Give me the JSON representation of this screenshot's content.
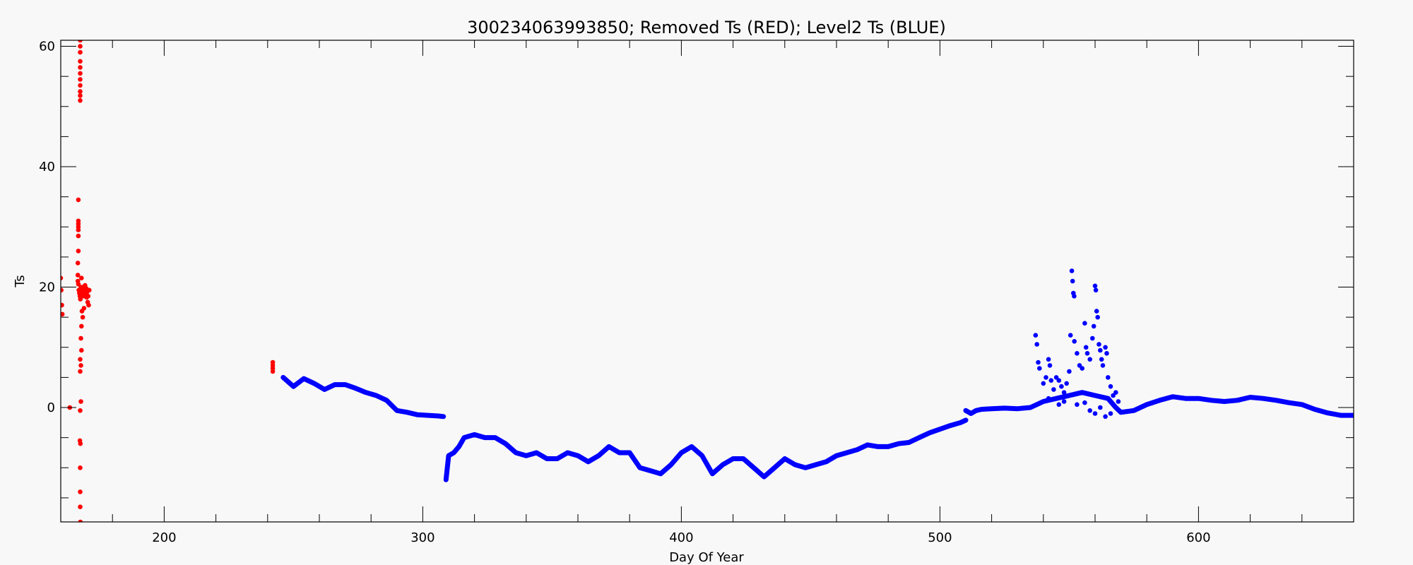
{
  "chart_data": {
    "type": "scatter",
    "title": "300234063993850; Removed Ts (RED); Level2 Ts (BLUE)",
    "xlabel": "Day Of Year",
    "ylabel": "Ts",
    "xlim": [
      160,
      660
    ],
    "ylim": [
      -19,
      61
    ],
    "xticks": [
      200,
      300,
      400,
      500,
      600
    ],
    "yticks": [
      0,
      20,
      40,
      60
    ],
    "x_minor_step": 20,
    "y_minor_step": 5,
    "grid": false,
    "colors": {
      "removed": "#ff0000",
      "level2": "#0000ff"
    },
    "series": [
      {
        "name": "Removed Ts (RED)",
        "color": "#ff0000",
        "points": [
          [
            160,
            21.5
          ],
          [
            160.2,
            19.5
          ],
          [
            160.4,
            17
          ],
          [
            160.6,
            15.5
          ],
          [
            163.5,
            0
          ],
          [
            167.5,
            61
          ],
          [
            167.5,
            60
          ],
          [
            167.5,
            59
          ],
          [
            167.5,
            57.5
          ],
          [
            167.5,
            56.5
          ],
          [
            167.5,
            55.5
          ],
          [
            167.5,
            54.5
          ],
          [
            167.5,
            53.5
          ],
          [
            167.5,
            52.5
          ],
          [
            167.5,
            51.8
          ],
          [
            167.5,
            51
          ],
          [
            166.8,
            34.5
          ],
          [
            166.8,
            31
          ],
          [
            166.8,
            30.5
          ],
          [
            166.8,
            30
          ],
          [
            166.8,
            29.5
          ],
          [
            166.8,
            28.5
          ],
          [
            166.8,
            26
          ],
          [
            166.6,
            24
          ],
          [
            166.6,
            22
          ],
          [
            166.6,
            21
          ],
          [
            166.8,
            20.5
          ],
          [
            167,
            19.5
          ],
          [
            167.2,
            19
          ],
          [
            167.4,
            18.5
          ],
          [
            167.6,
            18
          ],
          [
            167.8,
            20
          ],
          [
            168,
            21.5
          ],
          [
            168.2,
            19.5
          ],
          [
            168.4,
            18.8
          ],
          [
            168.6,
            20
          ],
          [
            168.8,
            18.5
          ],
          [
            169,
            19.5
          ],
          [
            169.2,
            19
          ],
          [
            169.4,
            20.3
          ],
          [
            169.6,
            18.7
          ],
          [
            169.8,
            19.8
          ],
          [
            170,
            18.3
          ],
          [
            170.2,
            19.2
          ],
          [
            170.4,
            17.5
          ],
          [
            170.6,
            18.5
          ],
          [
            170.8,
            17
          ],
          [
            171,
            19.5
          ],
          [
            169,
            16.5
          ],
          [
            168.2,
            16
          ],
          [
            168.5,
            15
          ],
          [
            168,
            13.5
          ],
          [
            167.8,
            11.5
          ],
          [
            168,
            9.5
          ],
          [
            167.5,
            8
          ],
          [
            167.8,
            7
          ],
          [
            167.5,
            6
          ],
          [
            167.8,
            1
          ],
          [
            167.5,
            -0.5
          ],
          [
            167.4,
            -5.5
          ],
          [
            167.6,
            -6
          ],
          [
            167.5,
            -10
          ],
          [
            167.5,
            -14
          ],
          [
            167.5,
            -16.5
          ],
          [
            167.6,
            -19
          ],
          [
            242,
            7.5
          ],
          [
            242,
            7
          ],
          [
            242,
            6.5
          ],
          [
            242,
            6
          ]
        ]
      },
      {
        "name": "Level2 Ts (BLUE)",
        "color": "#0000ff",
        "segments": [
          [
            [
              246,
              5
            ],
            [
              250,
              3.5
            ],
            [
              254,
              4.8
            ],
            [
              258,
              4
            ],
            [
              262,
              3
            ],
            [
              266,
              3.8
            ],
            [
              270,
              3.8
            ],
            [
              274,
              3.2
            ],
            [
              278,
              2.5
            ],
            [
              282,
              2
            ],
            [
              286,
              1.2
            ],
            [
              290,
              -0.5
            ],
            [
              294,
              -0.8
            ],
            [
              298,
              -1.2
            ],
            [
              302,
              -1.3
            ],
            [
              306,
              -1.4
            ],
            [
              308,
              -1.5
            ]
          ],
          [
            [
              309,
              -12
            ],
            [
              310,
              -8
            ],
            [
              312,
              -7.5
            ],
            [
              314,
              -6.5
            ],
            [
              316,
              -5
            ],
            [
              320,
              -4.5
            ],
            [
              324,
              -5
            ],
            [
              328,
              -5
            ],
            [
              332,
              -6
            ],
            [
              336,
              -7.5
            ],
            [
              340,
              -8
            ],
            [
              344,
              -7.5
            ],
            [
              348,
              -8.5
            ],
            [
              352,
              -8.5
            ],
            [
              356,
              -7.5
            ],
            [
              360,
              -8
            ],
            [
              364,
              -9
            ],
            [
              368,
              -8
            ],
            [
              372,
              -6.5
            ],
            [
              376,
              -7.5
            ],
            [
              380,
              -7.5
            ],
            [
              384,
              -10
            ],
            [
              388,
              -10.5
            ],
            [
              392,
              -11
            ],
            [
              396,
              -9.5
            ],
            [
              400,
              -7.5
            ],
            [
              404,
              -6.5
            ],
            [
              408,
              -8
            ],
            [
              412,
              -11
            ],
            [
              416,
              -9.5
            ],
            [
              420,
              -8.5
            ],
            [
              424,
              -8.5
            ],
            [
              428,
              -10
            ],
            [
              432,
              -11.5
            ],
            [
              436,
              -10
            ],
            [
              440,
              -8.5
            ],
            [
              444,
              -9.5
            ],
            [
              448,
              -10
            ],
            [
              452,
              -9.5
            ],
            [
              456,
              -9
            ],
            [
              460,
              -8
            ],
            [
              464,
              -7.5
            ],
            [
              468,
              -7
            ],
            [
              472,
              -6.2
            ],
            [
              476,
              -6.5
            ],
            [
              480,
              -6.5
            ],
            [
              484,
              -6
            ],
            [
              488,
              -5.8
            ],
            [
              492,
              -5
            ],
            [
              496,
              -4.2
            ],
            [
              500,
              -3.6
            ],
            [
              504,
              -3
            ],
            [
              508,
              -2.5
            ],
            [
              510,
              -2.1
            ]
          ],
          [
            [
              510,
              -0.5
            ],
            [
              512,
              -1
            ],
            [
              514,
              -0.5
            ],
            [
              516,
              -0.3
            ],
            [
              520,
              -0.2
            ],
            [
              525,
              -0.1
            ],
            [
              530,
              -0.2
            ],
            [
              535,
              0
            ],
            [
              540,
              1
            ],
            [
              545,
              1.5
            ],
            [
              550,
              2
            ],
            [
              555,
              2.5
            ],
            [
              560,
              2
            ],
            [
              565,
              1.5
            ],
            [
              568,
              0
            ],
            [
              570,
              -0.8
            ],
            [
              575,
              -0.5
            ],
            [
              580,
              0.5
            ],
            [
              585,
              1.2
            ],
            [
              590,
              1.8
            ],
            [
              595,
              1.5
            ],
            [
              600,
              1.5
            ],
            [
              605,
              1.2
            ],
            [
              610,
              1
            ],
            [
              615,
              1.2
            ],
            [
              620,
              1.7
            ],
            [
              625,
              1.5
            ],
            [
              630,
              1.2
            ],
            [
              635,
              0.8
            ],
            [
              640,
              0.5
            ],
            [
              645,
              -0.3
            ],
            [
              650,
              -0.9
            ],
            [
              655,
              -1.3
            ],
            [
              660,
              -1.3
            ]
          ]
        ],
        "points": [
          [
            537,
            12
          ],
          [
            537.5,
            10.5
          ],
          [
            538,
            7.5
          ],
          [
            538.5,
            6.5
          ],
          [
            540,
            4
          ],
          [
            541,
            5
          ],
          [
            542,
            8
          ],
          [
            542.5,
            7
          ],
          [
            543,
            4.5
          ],
          [
            544,
            3
          ],
          [
            545,
            5
          ],
          [
            546,
            4.5
          ],
          [
            547,
            3.5
          ],
          [
            548,
            2.5
          ],
          [
            549,
            4
          ],
          [
            550,
            6
          ],
          [
            550.5,
            12
          ],
          [
            551,
            22.7
          ],
          [
            551.3,
            21
          ],
          [
            551.6,
            19
          ],
          [
            551.9,
            18.5
          ],
          [
            552,
            11
          ],
          [
            553,
            9
          ],
          [
            554,
            7
          ],
          [
            555,
            6.5
          ],
          [
            556,
            14
          ],
          [
            556.5,
            10
          ],
          [
            557,
            9
          ],
          [
            558,
            8
          ],
          [
            559,
            11.5
          ],
          [
            559.5,
            13.5
          ],
          [
            560,
            20.2
          ],
          [
            560.3,
            19.5
          ],
          [
            560.6,
            16
          ],
          [
            561,
            15
          ],
          [
            561.5,
            10.5
          ],
          [
            562,
            9.5
          ],
          [
            562.5,
            8
          ],
          [
            563,
            7
          ],
          [
            564,
            10
          ],
          [
            564.5,
            9
          ],
          [
            565,
            5
          ],
          [
            566,
            3.5
          ],
          [
            567,
            2
          ],
          [
            558,
            -0.5
          ],
          [
            560,
            -1
          ],
          [
            562,
            0
          ],
          [
            564,
            -1.5
          ],
          [
            566,
            -1
          ],
          [
            553,
            0.5
          ],
          [
            556,
            0.8
          ],
          [
            546,
            0.5
          ],
          [
            548,
            1
          ],
          [
            542,
            1.5
          ],
          [
            568,
            2.5
          ],
          [
            569,
            1
          ]
        ]
      }
    ]
  }
}
